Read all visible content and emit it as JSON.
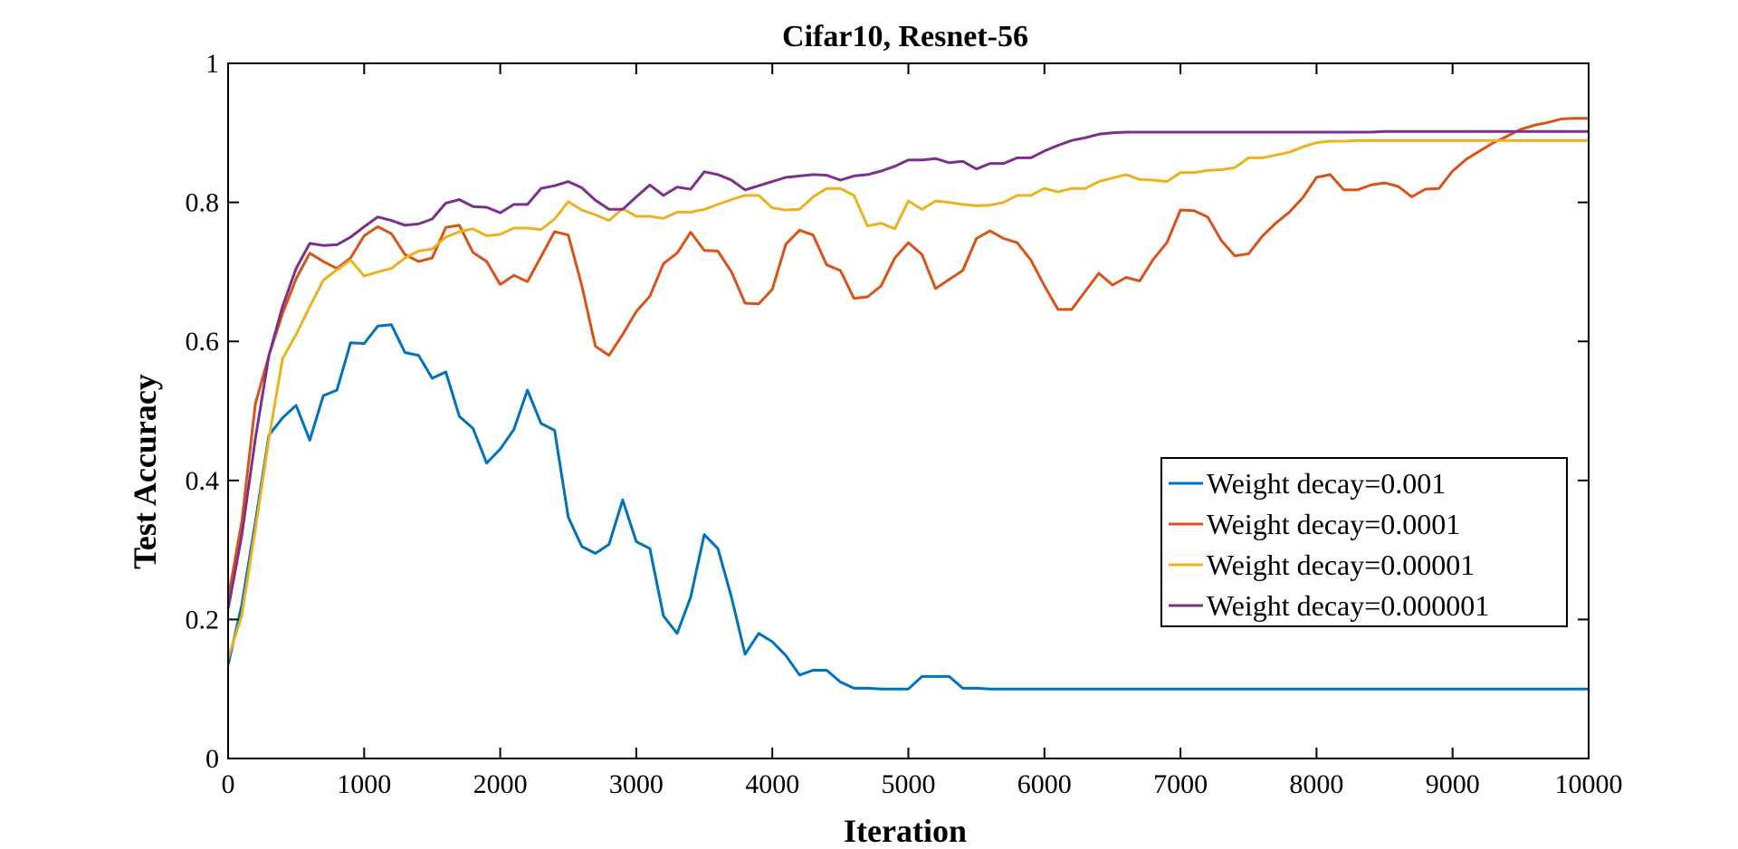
{
  "chart_data": {
    "type": "line",
    "title": "Cifar10, Resnet-56",
    "xlabel": "Iteration",
    "ylabel": "Test Accuracy",
    "xlim": [
      0,
      10000
    ],
    "ylim": [
      0,
      1
    ],
    "xticks": [
      0,
      1000,
      2000,
      3000,
      4000,
      5000,
      6000,
      7000,
      8000,
      9000,
      10000
    ],
    "yticks": [
      0,
      0.2,
      0.4,
      0.6,
      0.8,
      1
    ],
    "ytick_labels": [
      "0",
      "0.2",
      "0.4",
      "0.6",
      "0.8",
      "1"
    ],
    "grid": false,
    "box": true,
    "legend": "right",
    "x": [
      0,
      100,
      200,
      300,
      400,
      500,
      600,
      700,
      800,
      900,
      1000,
      1100,
      1200,
      1300,
      1400,
      1500,
      1600,
      1700,
      1800,
      1900,
      2000,
      2100,
      2200,
      2300,
      2400,
      2500,
      2600,
      2700,
      2800,
      2900,
      3000,
      3100,
      3200,
      3300,
      3400,
      3500,
      3600,
      3700,
      3800,
      3900,
      4000,
      4100,
      4200,
      4300,
      4400,
      4500,
      4600,
      4700,
      4800,
      4900,
      5000,
      5100,
      5200,
      5300,
      5400,
      5500,
      5600,
      5700,
      5800,
      5900,
      6000,
      6100,
      6200,
      6300,
      6400,
      6500,
      6600,
      6700,
      6800,
      6900,
      7000,
      7100,
      7200,
      7300,
      7400,
      7500,
      7600,
      7700,
      7800,
      7900,
      8000,
      8100,
      8200,
      8300,
      8400,
      8500,
      8600,
      8700,
      8800,
      8900,
      9000,
      9100,
      9200,
      9300,
      9400,
      9500,
      9600,
      9700,
      9800,
      9900,
      10000
    ],
    "series": [
      {
        "name": "Weight decay=0.001",
        "color": "#0072BD",
        "values": [
          0.135,
          0.22,
          0.34,
          0.465,
          0.49,
          0.508,
          0.458,
          0.522,
          0.53,
          0.598,
          0.597,
          0.622,
          0.624,
          0.584,
          0.58,
          0.547,
          0.556,
          0.492,
          0.475,
          0.425,
          0.445,
          0.473,
          0.53,
          0.482,
          0.472,
          0.347,
          0.305,
          0.295,
          0.308,
          0.372,
          0.312,
          0.302,
          0.205,
          0.18,
          0.232,
          0.322,
          0.302,
          0.232,
          0.15,
          0.18,
          0.168,
          0.148,
          0.12,
          0.127,
          0.127,
          0.11,
          0.101,
          0.101,
          0.1,
          0.1,
          0.1,
          0.118,
          0.118,
          0.118,
          0.101,
          0.101,
          0.1,
          0.1,
          0.1,
          0.1,
          0.1,
          0.1,
          0.1,
          0.1,
          0.1,
          0.1,
          0.1,
          0.1,
          0.1,
          0.1,
          0.1,
          0.1,
          0.1,
          0.1,
          0.1,
          0.1,
          0.1,
          0.1,
          0.1,
          0.1,
          0.1,
          0.1,
          0.1,
          0.1,
          0.1,
          0.1,
          0.1,
          0.1,
          0.1,
          0.1,
          0.1,
          0.1,
          0.1,
          0.1,
          0.1,
          0.1,
          0.1,
          0.1,
          0.1,
          0.1,
          0.1
        ]
      },
      {
        "name": "Weight decay=0.0001",
        "color": "#D95319",
        "values": [
          0.23,
          0.34,
          0.51,
          0.58,
          0.64,
          0.69,
          0.727,
          0.715,
          0.705,
          0.72,
          0.752,
          0.765,
          0.755,
          0.725,
          0.715,
          0.72,
          0.764,
          0.767,
          0.728,
          0.715,
          0.682,
          0.695,
          0.686,
          0.722,
          0.758,
          0.753,
          0.68,
          0.593,
          0.58,
          0.61,
          0.643,
          0.665,
          0.712,
          0.727,
          0.757,
          0.731,
          0.73,
          0.7,
          0.655,
          0.654,
          0.675,
          0.74,
          0.76,
          0.753,
          0.71,
          0.702,
          0.662,
          0.664,
          0.68,
          0.72,
          0.742,
          0.725,
          0.676,
          0.689,
          0.702,
          0.748,
          0.759,
          0.748,
          0.742,
          0.717,
          0.68,
          0.646,
          0.646,
          0.672,
          0.698,
          0.681,
          0.692,
          0.687,
          0.718,
          0.742,
          0.789,
          0.788,
          0.779,
          0.745,
          0.723,
          0.726,
          0.751,
          0.77,
          0.786,
          0.807,
          0.836,
          0.84,
          0.818,
          0.818,
          0.825,
          0.828,
          0.823,
          0.808,
          0.819,
          0.82,
          0.845,
          0.862,
          0.874,
          0.886,
          0.895,
          0.905,
          0.911,
          0.915,
          0.92,
          0.921,
          0.921
        ]
      },
      {
        "name": "Weight decay=0.00001",
        "color": "#EDB120",
        "values": [
          0.145,
          0.205,
          0.33,
          0.46,
          0.575,
          0.61,
          0.65,
          0.688,
          0.703,
          0.717,
          0.694,
          0.7,
          0.705,
          0.72,
          0.73,
          0.733,
          0.75,
          0.758,
          0.762,
          0.752,
          0.754,
          0.763,
          0.763,
          0.761,
          0.776,
          0.801,
          0.789,
          0.782,
          0.774,
          0.791,
          0.78,
          0.78,
          0.777,
          0.786,
          0.786,
          0.79,
          0.797,
          0.804,
          0.81,
          0.81,
          0.792,
          0.789,
          0.79,
          0.808,
          0.82,
          0.82,
          0.81,
          0.766,
          0.77,
          0.762,
          0.802,
          0.79,
          0.802,
          0.8,
          0.797,
          0.795,
          0.796,
          0.8,
          0.81,
          0.81,
          0.82,
          0.815,
          0.82,
          0.82,
          0.83,
          0.835,
          0.84,
          0.833,
          0.832,
          0.83,
          0.843,
          0.843,
          0.846,
          0.847,
          0.85,
          0.864,
          0.864,
          0.868,
          0.872,
          0.88,
          0.886,
          0.888,
          0.888,
          0.889,
          0.889,
          0.889,
          0.889,
          0.889,
          0.889,
          0.889,
          0.889,
          0.889,
          0.889,
          0.889,
          0.889,
          0.889,
          0.889,
          0.889,
          0.889,
          0.889,
          0.889
        ]
      },
      {
        "name": "Weight decay=0.000001",
        "color": "#7E2F8E",
        "values": [
          0.215,
          0.32,
          0.46,
          0.58,
          0.65,
          0.705,
          0.741,
          0.738,
          0.739,
          0.75,
          0.765,
          0.779,
          0.774,
          0.767,
          0.769,
          0.776,
          0.799,
          0.804,
          0.794,
          0.793,
          0.785,
          0.797,
          0.797,
          0.82,
          0.824,
          0.83,
          0.821,
          0.803,
          0.79,
          0.79,
          0.808,
          0.825,
          0.81,
          0.822,
          0.819,
          0.844,
          0.84,
          0.832,
          0.818,
          0.824,
          0.83,
          0.836,
          0.838,
          0.84,
          0.839,
          0.832,
          0.838,
          0.84,
          0.845,
          0.852,
          0.861,
          0.861,
          0.863,
          0.857,
          0.859,
          0.848,
          0.856,
          0.856,
          0.864,
          0.864,
          0.874,
          0.882,
          0.889,
          0.893,
          0.898,
          0.9,
          0.901,
          0.901,
          0.901,
          0.901,
          0.901,
          0.901,
          0.901,
          0.901,
          0.901,
          0.901,
          0.901,
          0.901,
          0.901,
          0.901,
          0.901,
          0.901,
          0.901,
          0.901,
          0.901,
          0.902,
          0.902,
          0.902,
          0.902,
          0.902,
          0.902,
          0.902,
          0.902,
          0.902,
          0.902,
          0.902,
          0.902,
          0.902,
          0.902,
          0.902,
          0.902
        ]
      }
    ]
  }
}
